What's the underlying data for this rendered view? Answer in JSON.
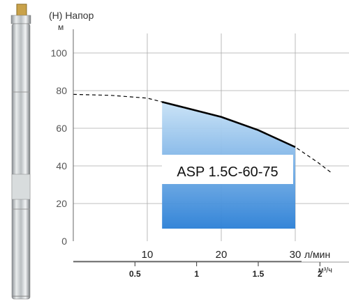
{
  "chart_data": {
    "type": "area",
    "title": "(H) Напор",
    "ylabel": "м",
    "xlabel_primary": "л/мин",
    "xlabel_secondary": "м³/ч",
    "xlim": [
      0,
      35
    ],
    "ylim": [
      0,
      100
    ],
    "yticks": [
      "0",
      "20",
      "40",
      "60",
      "80",
      "100"
    ],
    "xticks_primary": [
      "10",
      "20",
      "30"
    ],
    "xticks_secondary": [
      "0.5",
      "1",
      "1.5",
      "2"
    ],
    "grid": true,
    "model_label": "ASP 1.5C-60-75",
    "series": [
      {
        "style": "dashed",
        "x": [
          0,
          5,
          10,
          12,
          15,
          20,
          25,
          30,
          33,
          35
        ],
        "y": [
          78,
          77.5,
          76,
          74,
          71,
          66,
          59,
          50,
          42,
          36
        ]
      },
      {
        "style": "solid",
        "x": [
          12,
          15,
          20,
          25,
          30
        ],
        "y": [
          74,
          71,
          66,
          59,
          50
        ]
      }
    ],
    "operating_range": {
      "x_min": 12,
      "x_max": 30
    }
  },
  "colors": {
    "area_top": "#c8e2f6",
    "area_bottom": "#2a7fd6",
    "grid": "#aaaaaa",
    "curve": "#000000"
  }
}
